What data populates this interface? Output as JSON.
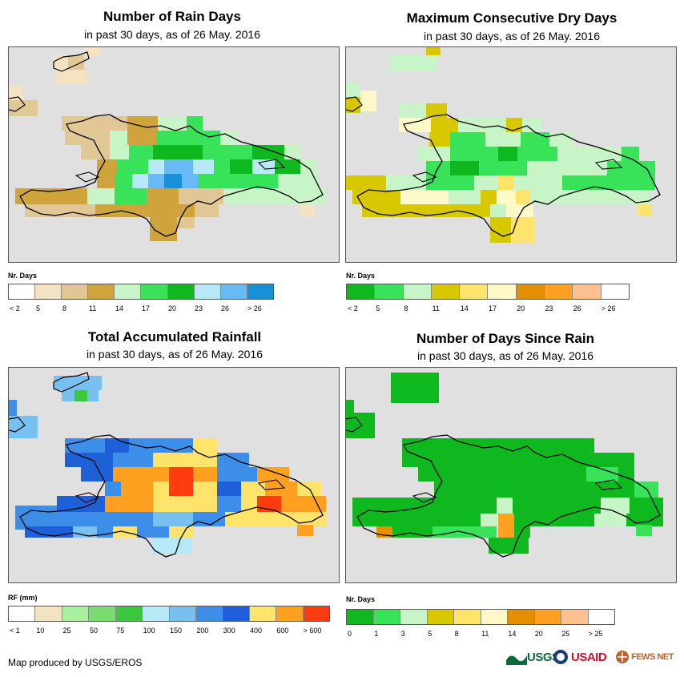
{
  "colors": {
    "background": "#e0e0e0",
    "outline": "#000000"
  },
  "panels": [
    {
      "title": "Number of Rain Days",
      "subtitle": "in past 30 days, as of 26 May. 2016",
      "legend": {
        "title": "Nr. Days",
        "colors": [
          "#ffffff",
          "#f3e3c3",
          "#e2c796",
          "#cfa43c",
          "#c8f5c8",
          "#38e35a",
          "#10b820",
          "#b8e9f8",
          "#68baf4",
          "#1890d8"
        ],
        "labels": [
          "< 2",
          "5",
          "8",
          "11",
          "14",
          "17",
          "20",
          "23",
          "26",
          "> 26"
        ]
      }
    },
    {
      "title": "Maximum Consecutive Dry Days",
      "subtitle": "in past 30 days, as of 26 May. 2016",
      "legend": {
        "title": "Nr. Days",
        "colors": [
          "#10b820",
          "#38e35a",
          "#c8f5c8",
          "#d8c800",
          "#ffe36a",
          "#fff8c8",
          "#e09000",
          "#ffa020",
          "#ffc090",
          "#ffffff"
        ],
        "labels": [
          "< 2",
          "5",
          "8",
          "11",
          "14",
          "17",
          "20",
          "23",
          "26",
          "> 26"
        ]
      }
    },
    {
      "title": "Total Accumulated Rainfall",
      "subtitle": "in past 30 days, as of 26 May. 2016",
      "legend": {
        "title": "RF (mm)",
        "colors": [
          "#ffffff",
          "#f3e3c3",
          "#a8f0a0",
          "#78dc70",
          "#3cc83c",
          "#b8e9f8",
          "#78c0f0",
          "#3c8ee8",
          "#1e60d8",
          "#ffe36a",
          "#ffa020",
          "#ff3c10"
        ],
        "labels": [
          "< 1",
          "10",
          "25",
          "50",
          "75",
          "100",
          "150",
          "200",
          "300",
          "400",
          "600",
          "> 600"
        ]
      }
    },
    {
      "title": "Number of Days Since Rain",
      "subtitle": "in past 30 days, as of 26 May. 2016",
      "legend": {
        "title": "Nr. Days",
        "colors": [
          "#10b820",
          "#38e35a",
          "#c8f5c8",
          "#d8c800",
          "#ffe36a",
          "#fff8c8",
          "#e09000",
          "#ffa020",
          "#ffc090",
          "#ffffff"
        ],
        "labels": [
          "0",
          "1",
          "3",
          "5",
          "8",
          "11",
          "14",
          "20",
          "25",
          "> 25"
        ]
      }
    }
  ],
  "footer": {
    "credit": "Map produced by USGS/EROS",
    "logos": [
      "USGS",
      "USAID",
      "FEWS NET"
    ]
  }
}
